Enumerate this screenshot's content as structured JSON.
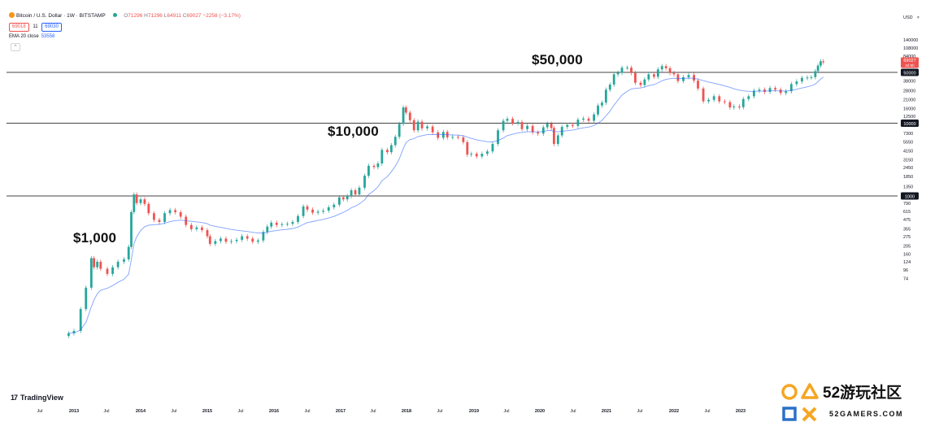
{
  "header": {
    "title": "Bitcoin / U.S. Dollar · 1W · BITSTAMP",
    "o_label": "O",
    "o": "71296",
    "h_label": "H",
    "h": "71296",
    "l_label": "L",
    "l": "64911",
    "c_label": "C",
    "c": "69027",
    "change": "−2258 (−3.17%)",
    "bid": "69018",
    "spread": "11",
    "ask": "69030",
    "ema_label": "EMA 20 close",
    "ema_value": "53558",
    "currency": "USD"
  },
  "annotations": {
    "a1000": "$1,000",
    "a10000": "$10,000",
    "a50000": "$50,000"
  },
  "logo": {
    "text": "TradingView",
    "mark": "17"
  },
  "watermark": {
    "title": "52游玩社区",
    "url": "52GAMERS.COM"
  },
  "colors": {
    "up": "#26a69a",
    "down": "#ef5350",
    "ema": "#2962ff",
    "level_line": "#444444",
    "tag_bg": "#131722",
    "price_tag": "#ef5350"
  },
  "chart_data": {
    "type": "candlestick",
    "scale": "log",
    "y_axis_ticks": [
      "140000",
      "108000",
      "84000",
      "64000",
      "50000",
      "38000",
      "28000",
      "21000",
      "16000",
      "12500",
      "9700",
      "7300",
      "5550",
      "4150",
      "3150",
      "2450",
      "1850",
      "1350",
      "1000",
      "790",
      "615",
      "475",
      "355",
      "275",
      "205",
      "160",
      "124",
      "96",
      "74"
    ],
    "x_axis_ticks": [
      "Jul",
      "2013",
      "Jul",
      "2014",
      "Jul",
      "2015",
      "Jul",
      "2016",
      "Jul",
      "2017",
      "Jul",
      "2018",
      "Jul",
      "2019",
      "Jul",
      "2020",
      "Jul",
      "2021",
      "Jul",
      "2022",
      "Jul",
      "2023"
    ],
    "horizontal_levels": [
      {
        "value": 50000,
        "label": "50000"
      },
      {
        "value": 10000,
        "label": "10000"
      },
      {
        "value": 1000,
        "label": "1000"
      }
    ],
    "price_tag": {
      "value": 69027,
      "label": "69027",
      "sub": "2d 5h"
    },
    "ema_period": 20,
    "ema_latest": 53558,
    "candles": [
      {
        "t": 2012.92,
        "c": 13
      },
      {
        "t": 2013.0,
        "c": 14
      },
      {
        "t": 2013.1,
        "c": 28
      },
      {
        "t": 2013.18,
        "c": 55
      },
      {
        "t": 2013.26,
        "c": 140
      },
      {
        "t": 2013.3,
        "c": 105
      },
      {
        "t": 2013.35,
        "c": 125
      },
      {
        "t": 2013.4,
        "c": 100
      },
      {
        "t": 2013.5,
        "c": 85
      },
      {
        "t": 2013.58,
        "c": 105
      },
      {
        "t": 2013.66,
        "c": 125
      },
      {
        "t": 2013.75,
        "c": 135
      },
      {
        "t": 2013.82,
        "c": 200
      },
      {
        "t": 2013.86,
        "c": 600
      },
      {
        "t": 2013.9,
        "c": 1050
      },
      {
        "t": 2013.94,
        "c": 800
      },
      {
        "t": 2014.0,
        "c": 900
      },
      {
        "t": 2014.06,
        "c": 780
      },
      {
        "t": 2014.12,
        "c": 580
      },
      {
        "t": 2014.2,
        "c": 470
      },
      {
        "t": 2014.28,
        "c": 440
      },
      {
        "t": 2014.36,
        "c": 580
      },
      {
        "t": 2014.44,
        "c": 640
      },
      {
        "t": 2014.52,
        "c": 600
      },
      {
        "t": 2014.6,
        "c": 520
      },
      {
        "t": 2014.68,
        "c": 400
      },
      {
        "t": 2014.76,
        "c": 350
      },
      {
        "t": 2014.84,
        "c": 370
      },
      {
        "t": 2014.92,
        "c": 340
      },
      {
        "t": 2015.0,
        "c": 280
      },
      {
        "t": 2015.04,
        "c": 220
      },
      {
        "t": 2015.12,
        "c": 240
      },
      {
        "t": 2015.2,
        "c": 260
      },
      {
        "t": 2015.28,
        "c": 235
      },
      {
        "t": 2015.36,
        "c": 240
      },
      {
        "t": 2015.44,
        "c": 250
      },
      {
        "t": 2015.52,
        "c": 280
      },
      {
        "t": 2015.6,
        "c": 260
      },
      {
        "t": 2015.68,
        "c": 235
      },
      {
        "t": 2015.76,
        "c": 245
      },
      {
        "t": 2015.84,
        "c": 320
      },
      {
        "t": 2015.9,
        "c": 380
      },
      {
        "t": 2015.96,
        "c": 430
      },
      {
        "t": 2016.04,
        "c": 400
      },
      {
        "t": 2016.12,
        "c": 410
      },
      {
        "t": 2016.2,
        "c": 415
      },
      {
        "t": 2016.28,
        "c": 440
      },
      {
        "t": 2016.36,
        "c": 530
      },
      {
        "t": 2016.44,
        "c": 720
      },
      {
        "t": 2016.5,
        "c": 650
      },
      {
        "t": 2016.58,
        "c": 590
      },
      {
        "t": 2016.66,
        "c": 610
      },
      {
        "t": 2016.74,
        "c": 630
      },
      {
        "t": 2016.82,
        "c": 700
      },
      {
        "t": 2016.9,
        "c": 760
      },
      {
        "t": 2016.98,
        "c": 960
      },
      {
        "t": 2017.04,
        "c": 900
      },
      {
        "t": 2017.1,
        "c": 1000
      },
      {
        "t": 2017.16,
        "c": 1200
      },
      {
        "t": 2017.22,
        "c": 1050
      },
      {
        "t": 2017.28,
        "c": 1300
      },
      {
        "t": 2017.36,
        "c": 1900
      },
      {
        "t": 2017.42,
        "c": 2600
      },
      {
        "t": 2017.5,
        "c": 2500
      },
      {
        "t": 2017.56,
        "c": 2800
      },
      {
        "t": 2017.62,
        "c": 4300
      },
      {
        "t": 2017.7,
        "c": 4000
      },
      {
        "t": 2017.76,
        "c": 5000
      },
      {
        "t": 2017.82,
        "c": 6500
      },
      {
        "t": 2017.88,
        "c": 9800
      },
      {
        "t": 2017.94,
        "c": 16500
      },
      {
        "t": 2017.98,
        "c": 14000
      },
      {
        "t": 2018.04,
        "c": 11000
      },
      {
        "t": 2018.1,
        "c": 8000
      },
      {
        "t": 2018.16,
        "c": 10500
      },
      {
        "t": 2018.22,
        "c": 8500
      },
      {
        "t": 2018.3,
        "c": 9000
      },
      {
        "t": 2018.38,
        "c": 7500
      },
      {
        "t": 2018.46,
        "c": 6300
      },
      {
        "t": 2018.54,
        "c": 7600
      },
      {
        "t": 2018.6,
        "c": 6400
      },
      {
        "t": 2018.68,
        "c": 6500
      },
      {
        "t": 2018.76,
        "c": 6400
      },
      {
        "t": 2018.84,
        "c": 5500
      },
      {
        "t": 2018.9,
        "c": 3700
      },
      {
        "t": 2018.96,
        "c": 3800
      },
      {
        "t": 2019.04,
        "c": 3500
      },
      {
        "t": 2019.12,
        "c": 3800
      },
      {
        "t": 2019.2,
        "c": 4100
      },
      {
        "t": 2019.28,
        "c": 5200
      },
      {
        "t": 2019.36,
        "c": 8000
      },
      {
        "t": 2019.44,
        "c": 10800
      },
      {
        "t": 2019.5,
        "c": 11500
      },
      {
        "t": 2019.58,
        "c": 10000
      },
      {
        "t": 2019.66,
        "c": 10400
      },
      {
        "t": 2019.72,
        "c": 8300
      },
      {
        "t": 2019.8,
        "c": 9200
      },
      {
        "t": 2019.88,
        "c": 7500
      },
      {
        "t": 2019.96,
        "c": 7200
      },
      {
        "t": 2020.04,
        "c": 8800
      },
      {
        "t": 2020.1,
        "c": 9900
      },
      {
        "t": 2020.16,
        "c": 8600
      },
      {
        "t": 2020.2,
        "c": 5200
      },
      {
        "t": 2020.26,
        "c": 6800
      },
      {
        "t": 2020.32,
        "c": 8900
      },
      {
        "t": 2020.4,
        "c": 9500
      },
      {
        "t": 2020.48,
        "c": 9200
      },
      {
        "t": 2020.56,
        "c": 11200
      },
      {
        "t": 2020.64,
        "c": 11600
      },
      {
        "t": 2020.72,
        "c": 10800
      },
      {
        "t": 2020.8,
        "c": 13200
      },
      {
        "t": 2020.86,
        "c": 17500
      },
      {
        "t": 2020.92,
        "c": 19200
      },
      {
        "t": 2020.98,
        "c": 28900
      },
      {
        "t": 2021.04,
        "c": 34000
      },
      {
        "t": 2021.1,
        "c": 47000
      },
      {
        "t": 2021.16,
        "c": 49500
      },
      {
        "t": 2021.22,
        "c": 58000
      },
      {
        "t": 2021.3,
        "c": 58000
      },
      {
        "t": 2021.36,
        "c": 49000
      },
      {
        "t": 2021.42,
        "c": 36000
      },
      {
        "t": 2021.5,
        "c": 33500
      },
      {
        "t": 2021.56,
        "c": 40000
      },
      {
        "t": 2021.62,
        "c": 47000
      },
      {
        "t": 2021.7,
        "c": 43500
      },
      {
        "t": 2021.76,
        "c": 55000
      },
      {
        "t": 2021.82,
        "c": 61000
      },
      {
        "t": 2021.88,
        "c": 57000
      },
      {
        "t": 2021.94,
        "c": 49000
      },
      {
        "t": 2022.0,
        "c": 47000
      },
      {
        "t": 2022.06,
        "c": 38000
      },
      {
        "t": 2022.14,
        "c": 43000
      },
      {
        "t": 2022.22,
        "c": 46000
      },
      {
        "t": 2022.3,
        "c": 38500
      },
      {
        "t": 2022.36,
        "c": 30000
      },
      {
        "t": 2022.44,
        "c": 20000
      },
      {
        "t": 2022.52,
        "c": 21000
      },
      {
        "t": 2022.6,
        "c": 23500
      },
      {
        "t": 2022.68,
        "c": 20000
      },
      {
        "t": 2022.76,
        "c": 19500
      },
      {
        "t": 2022.84,
        "c": 16500
      },
      {
        "t": 2022.9,
        "c": 17000
      },
      {
        "t": 2022.98,
        "c": 16600
      },
      {
        "t": 2023.04,
        "c": 21500
      },
      {
        "t": 2023.12,
        "c": 23500
      },
      {
        "t": 2023.2,
        "c": 28000
      },
      {
        "t": 2023.28,
        "c": 29000
      },
      {
        "t": 2023.36,
        "c": 27000
      },
      {
        "t": 2023.44,
        "c": 30500
      },
      {
        "t": 2023.52,
        "c": 29000
      },
      {
        "t": 2023.6,
        "c": 26000
      },
      {
        "t": 2023.68,
        "c": 27500
      },
      {
        "t": 2023.76,
        "c": 34500
      },
      {
        "t": 2023.84,
        "c": 37500
      },
      {
        "t": 2023.92,
        "c": 42000
      },
      {
        "t": 2024.0,
        "c": 42500
      },
      {
        "t": 2024.06,
        "c": 43000
      },
      {
        "t": 2024.12,
        "c": 52000
      },
      {
        "t": 2024.16,
        "c": 62000
      },
      {
        "t": 2024.2,
        "c": 71000
      },
      {
        "t": 2024.24,
        "c": 69027
      }
    ]
  }
}
